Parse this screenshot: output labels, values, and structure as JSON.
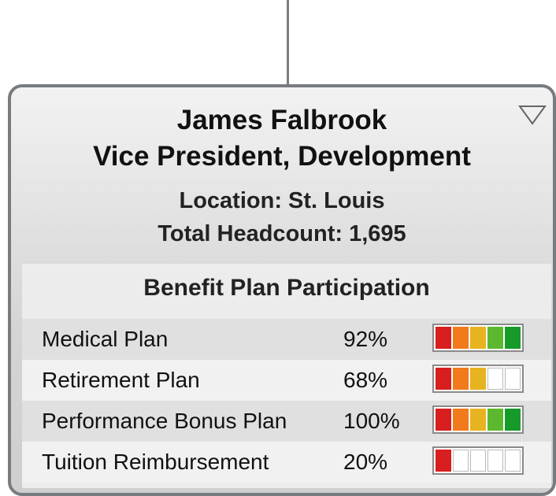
{
  "card": {
    "name": "James Falbrook",
    "title": "Vice President, Development",
    "location": "Location: St. Louis",
    "headcount": "Total Headcount: 1,695",
    "section_title": "Benefit Plan Participation",
    "segment_colors": [
      "#d81e1e",
      "#f07a1c",
      "#e8b320",
      "#5cb82e",
      "#169a2a"
    ],
    "rows": [
      {
        "label": "Medical Plan",
        "value": "92%",
        "rating": 5
      },
      {
        "label": "Retirement Plan",
        "value": "68%",
        "rating": 3
      },
      {
        "label": "Performance Bonus Plan",
        "value": "100%",
        "rating": 5
      },
      {
        "label": "Tuition Reimbursement",
        "value": "20%",
        "rating": 1
      }
    ]
  }
}
